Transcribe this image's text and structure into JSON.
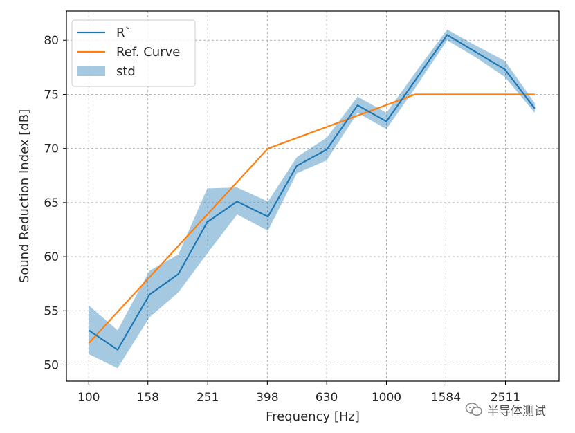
{
  "chart_data": {
    "type": "line",
    "xlabel": "Frequency [Hz]",
    "ylabel": "Sound Reduction Index [dB]",
    "xtick_labels": [
      "100",
      "158",
      "251",
      "398",
      "630",
      "1000",
      "1584",
      "2511"
    ],
    "yticks": [
      50,
      55,
      60,
      65,
      70,
      75,
      80
    ],
    "ylim": [
      48.5,
      82.7
    ],
    "xlim_third_octave_index": [
      -0.75,
      15.8
    ],
    "grid": true,
    "legend_position": "upper-left",
    "series": [
      {
        "name": "R`",
        "kind": "line",
        "color": "#1f77b4",
        "x": [
          100,
          125,
          160,
          200,
          250,
          315,
          400,
          500,
          630,
          800,
          1000,
          1250,
          1600,
          2000,
          2500,
          3150
        ],
        "y": [
          53.2,
          51.4,
          56.5,
          58.4,
          63.2,
          65.1,
          63.7,
          68.4,
          69.9,
          74.0,
          72.5,
          76.3,
          80.5,
          78.9,
          77.3,
          73.7
        ]
      },
      {
        "name": "Ref. Curve",
        "kind": "line",
        "color": "#ff7f0e",
        "x": [
          100,
          400,
          1250,
          3150
        ],
        "y": [
          52.0,
          70.0,
          75.0,
          75.0
        ]
      },
      {
        "name": "std",
        "kind": "band",
        "color": "#1f77b4",
        "x": [
          100,
          125,
          160,
          200,
          250,
          315,
          400,
          500,
          630,
          800,
          1000,
          1250,
          1600,
          2000,
          2500,
          3150
        ],
        "lower": [
          51.0,
          49.7,
          54.4,
          56.7,
          60.3,
          63.9,
          62.4,
          67.7,
          68.9,
          73.3,
          71.8,
          75.6,
          80.0,
          78.4,
          76.6,
          73.3
        ],
        "upper": [
          55.5,
          53.2,
          58.7,
          60.2,
          66.3,
          66.4,
          65.1,
          69.2,
          71.0,
          74.8,
          73.3,
          77.0,
          81.0,
          79.5,
          78.1,
          74.2
        ]
      }
    ]
  },
  "watermark": {
    "icon": "wechat-icon",
    "text": "半导体测试"
  }
}
